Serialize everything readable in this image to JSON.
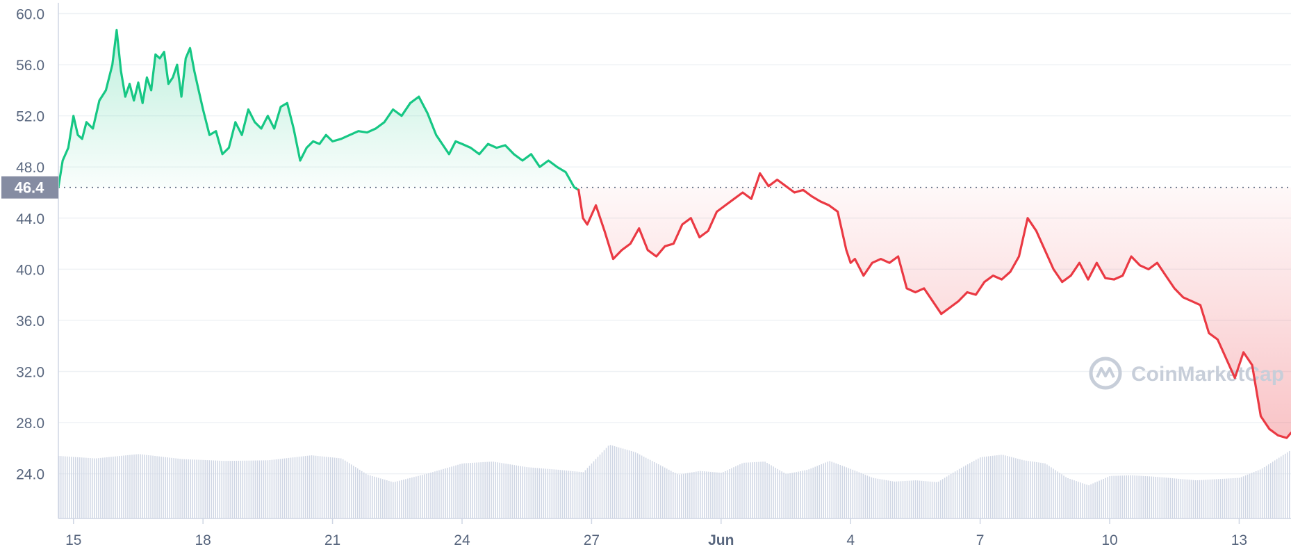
{
  "chart_data": {
    "type": "line",
    "y_ticks": [
      "24.0",
      "28.0",
      "32.0",
      "36.0",
      "40.0",
      "44.0",
      "48.0",
      "52.0",
      "56.0",
      "60.0"
    ],
    "ylim": [
      20.5,
      60.3
    ],
    "x_ticks": [
      {
        "label": "15",
        "day": 0.0,
        "bold": false
      },
      {
        "label": "18",
        "day": 3.0,
        "bold": false
      },
      {
        "label": "21",
        "day": 6.0,
        "bold": false
      },
      {
        "label": "24",
        "day": 9.0,
        "bold": false
      },
      {
        "label": "27",
        "day": 12.0,
        "bold": false
      },
      {
        "label": "Jun",
        "day": 15.0,
        "bold": true
      },
      {
        "label": "4",
        "day": 18.0,
        "bold": false
      },
      {
        "label": "7",
        "day": 21.0,
        "bold": false
      },
      {
        "label": "10",
        "day": 24.0,
        "bold": false
      },
      {
        "label": "13",
        "day": 27.0,
        "bold": false
      }
    ],
    "xlim": [
      -0.35,
      28.2
    ],
    "reference_price": 46.4,
    "current_label": "46.4",
    "up_color": "#16c784",
    "down_color": "#ea3943",
    "volume_color": "#cfd6e4",
    "series": [
      {
        "x": [
          -0.35,
          -0.25,
          -0.12,
          0.0,
          0.1,
          0.2,
          0.3,
          0.45,
          0.6,
          0.75,
          0.9,
          1.0,
          1.1,
          1.2,
          1.3,
          1.4,
          1.5,
          1.6,
          1.7,
          1.8,
          1.9,
          2.0,
          2.1,
          2.2,
          2.3,
          2.4,
          2.5,
          2.6,
          2.7,
          2.8,
          2.9,
          3.0,
          3.15,
          3.3,
          3.45,
          3.6,
          3.75,
          3.9,
          4.05,
          4.2,
          4.35,
          4.5,
          4.65,
          4.8,
          4.95,
          5.1,
          5.25,
          5.4,
          5.55,
          5.7,
          5.85,
          6.0,
          6.2,
          6.4,
          6.6,
          6.8,
          7.0,
          7.2,
          7.4,
          7.6,
          7.8,
          8.0,
          8.2,
          8.4,
          8.6,
          8.7,
          8.85,
          9.0,
          9.2,
          9.4,
          9.6,
          9.8,
          10.0,
          10.2,
          10.4,
          10.6,
          10.8,
          11.0,
          11.2,
          11.4,
          11.6,
          11.7
        ],
        "y": [
          46.4,
          48.5,
          49.5,
          52.0,
          50.5,
          50.2,
          51.5,
          51.0,
          53.2,
          54.0,
          56.0,
          58.7,
          55.5,
          53.5,
          54.5,
          53.2,
          54.6,
          53.0,
          55.0,
          54.0,
          56.8,
          56.5,
          57.0,
          54.5,
          55.0,
          56.0,
          53.5,
          56.5,
          57.3,
          55.5,
          54.0,
          52.5,
          50.5,
          50.8,
          49.0,
          49.5,
          51.5,
          50.5,
          52.5,
          51.5,
          51.0,
          52.0,
          51.0,
          52.7,
          53.0,
          51.0,
          48.5,
          49.5,
          50.0,
          49.8,
          50.5,
          50.0,
          50.2,
          50.5,
          50.8,
          50.7,
          51.0,
          51.5,
          52.5,
          52.0,
          53.0,
          53.5,
          52.2,
          50.5,
          49.5,
          49.0,
          50.0,
          49.8,
          49.5,
          49.0,
          49.8,
          49.5,
          49.7,
          49.0,
          48.5,
          49.0,
          48.0,
          48.5,
          48.0,
          47.6,
          46.4,
          46.2
        ],
        "color": "up"
      },
      {
        "x": [
          11.7,
          11.8,
          11.9,
          12.1,
          12.3,
          12.5,
          12.7,
          12.9,
          13.1,
          13.3,
          13.5,
          13.7,
          13.9,
          14.1,
          14.3,
          14.5,
          14.7,
          14.9,
          15.1,
          15.3,
          15.5,
          15.7,
          15.9,
          16.1,
          16.3,
          16.5,
          16.7,
          16.9,
          17.1,
          17.3,
          17.5,
          17.7,
          17.9,
          18.0,
          18.1,
          18.3,
          18.5,
          18.7,
          18.9,
          19.1,
          19.3,
          19.5,
          19.7,
          19.9,
          20.1,
          20.3,
          20.5,
          20.7,
          20.9,
          21.0,
          21.1,
          21.3,
          21.5,
          21.7,
          21.9,
          22.1,
          22.3,
          22.5,
          22.7,
          22.9,
          23.1,
          23.3,
          23.5,
          23.7,
          23.9,
          24.1,
          24.3,
          24.5,
          24.7,
          24.9,
          25.1,
          25.3,
          25.5,
          25.7,
          25.9,
          26.1,
          26.3,
          26.5,
          26.7,
          26.9,
          27.1,
          27.3,
          27.5,
          27.7,
          27.9,
          28.1,
          28.2
        ],
        "y": [
          46.2,
          44.0,
          43.5,
          45.0,
          43.0,
          40.8,
          41.5,
          42.0,
          43.2,
          41.5,
          41.0,
          41.8,
          42.0,
          43.5,
          44.0,
          42.5,
          43.0,
          44.5,
          45.0,
          45.5,
          46.0,
          45.5,
          47.5,
          46.5,
          47.0,
          46.5,
          46.0,
          46.2,
          45.7,
          45.3,
          45.0,
          44.5,
          41.5,
          40.5,
          40.8,
          39.5,
          40.5,
          40.8,
          40.5,
          41.0,
          38.5,
          38.2,
          38.5,
          37.5,
          36.5,
          37.0,
          37.5,
          38.2,
          38.0,
          38.5,
          39.0,
          39.5,
          39.2,
          39.8,
          41.0,
          44.0,
          43.0,
          41.5,
          40.0,
          39.0,
          39.5,
          40.5,
          39.2,
          40.5,
          39.3,
          39.2,
          39.5,
          41.0,
          40.3,
          40.0,
          40.5,
          39.5,
          38.5,
          37.8,
          37.5,
          37.2,
          35.0,
          34.5,
          33.0,
          31.5,
          33.5,
          32.5,
          28.5,
          27.5,
          27.0,
          26.8,
          27.2
        ],
        "color": "down"
      }
    ],
    "volume": {
      "x": [
        -0.35,
        0.5,
        1.5,
        2.5,
        3.5,
        4.5,
        5.5,
        6.2,
        6.8,
        7.4,
        8.2,
        9.0,
        9.7,
        10.5,
        11.2,
        11.8,
        12.4,
        12.7,
        13.0,
        13.5,
        14.0,
        14.5,
        15.0,
        15.5,
        16.0,
        16.5,
        17.0,
        17.5,
        18.0,
        18.5,
        19.0,
        19.5,
        20.0,
        20.5,
        21.0,
        21.5,
        22.0,
        22.5,
        23.0,
        23.5,
        24.0,
        24.5,
        25.0,
        25.5,
        26.0,
        26.5,
        27.0,
        27.5,
        28.2
      ],
      "y": [
        10.0,
        9.6,
        10.3,
        9.5,
        9.2,
        9.3,
        10.1,
        9.6,
        7.0,
        5.8,
        7.2,
        8.8,
        9.1,
        8.2,
        7.8,
        7.4,
        11.8,
        11.2,
        10.6,
        8.8,
        7.0,
        7.6,
        7.3,
        8.9,
        9.1,
        7.1,
        7.8,
        9.2,
        7.9,
        6.5,
        5.9,
        6.1,
        5.8,
        7.9,
        9.8,
        10.2,
        9.3,
        8.8,
        6.5,
        5.3,
        6.8,
        6.9,
        6.7,
        6.4,
        6.1,
        6.3,
        6.5,
        7.9,
        11.0
      ]
    }
  }
}
